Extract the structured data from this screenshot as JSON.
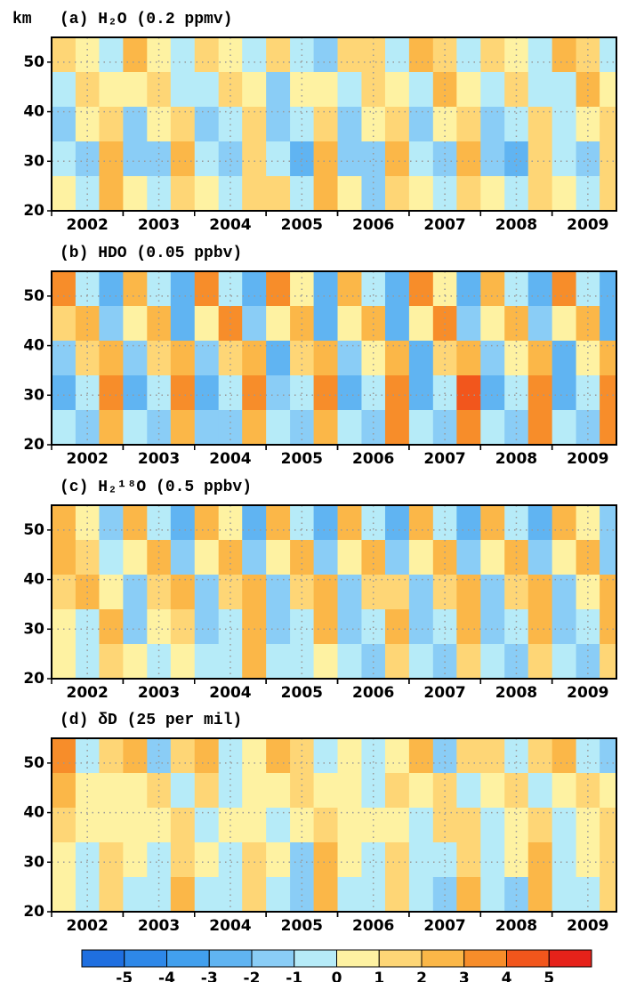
{
  "chart_data": [
    {
      "type": "heatmap",
      "title": "(a) H₂O (0.2 ppmv)",
      "y_label": "km",
      "x": [
        2001.67,
        2002.0,
        2002.33,
        2002.67,
        2003.0,
        2003.33,
        2003.67,
        2004.0,
        2004.33,
        2004.67,
        2005.0,
        2005.33,
        2005.67,
        2006.0,
        2006.33,
        2006.67,
        2007.0,
        2007.33,
        2007.67,
        2008.0,
        2008.33,
        2008.67,
        2009.0,
        2009.33
      ],
      "y": [
        51.5,
        44.5,
        37.5,
        30.5,
        23.5
      ],
      "z": [
        [
          1,
          0,
          -1,
          2,
          0,
          -1,
          1,
          0,
          -1,
          1,
          -1,
          -2,
          1,
          1,
          -1,
          2,
          1,
          -1,
          1,
          0,
          -1,
          2,
          1,
          -1
        ],
        [
          -1,
          1,
          0,
          0,
          1,
          -1,
          -1,
          1,
          0,
          -2,
          0,
          0,
          -1,
          1,
          0,
          -1,
          2,
          0,
          -1,
          1,
          -1,
          -1,
          2,
          0
        ],
        [
          -2,
          0,
          1,
          -2,
          0,
          1,
          -2,
          -1,
          1,
          -2,
          -1,
          1,
          -2,
          0,
          1,
          -2,
          0,
          1,
          -2,
          -1,
          1,
          -1,
          0,
          1
        ],
        [
          -1,
          -2,
          2,
          -2,
          -2,
          2,
          -1,
          -2,
          1,
          -1,
          -3,
          2,
          -2,
          -2,
          2,
          -1,
          -2,
          2,
          -2,
          -3,
          1,
          -1,
          -2,
          1
        ],
        [
          0,
          -1,
          2,
          0,
          -1,
          1,
          0,
          -1,
          1,
          1,
          -1,
          2,
          0,
          -2,
          1,
          0,
          -1,
          1,
          0,
          -1,
          1,
          0,
          -1,
          1
        ]
      ],
      "xlim": [
        2001.5,
        2009.4
      ],
      "ylim": [
        20,
        55
      ],
      "xticks": [
        2002,
        2003,
        2004,
        2005,
        2006,
        2007,
        2008,
        2009
      ],
      "yticks": [
        20,
        30,
        40,
        50
      ],
      "grid": true
    },
    {
      "type": "heatmap",
      "title": "(b) HDO (0.05 ppbv)",
      "x": [
        2001.67,
        2002.0,
        2002.33,
        2002.67,
        2003.0,
        2003.33,
        2003.67,
        2004.0,
        2004.33,
        2004.67,
        2005.0,
        2005.33,
        2005.67,
        2006.0,
        2006.33,
        2006.67,
        2007.0,
        2007.33,
        2007.67,
        2008.0,
        2008.33,
        2008.67,
        2009.0,
        2009.33
      ],
      "y": [
        51.5,
        44.5,
        37.5,
        30.5,
        23.5
      ],
      "z": [
        [
          3,
          -1,
          -3,
          2,
          -1,
          -3,
          3,
          -1,
          -3,
          3,
          0,
          -3,
          2,
          -1,
          -3,
          3,
          0,
          -3,
          2,
          -1,
          -3,
          3,
          -1,
          -3
        ],
        [
          1,
          2,
          -2,
          0,
          2,
          -3,
          0,
          3,
          -2,
          0,
          2,
          -3,
          0,
          2,
          -3,
          0,
          3,
          -2,
          0,
          2,
          -2,
          0,
          2,
          -3
        ],
        [
          -2,
          1,
          2,
          -2,
          1,
          2,
          -2,
          1,
          2,
          -3,
          1,
          2,
          -2,
          0,
          2,
          -3,
          1,
          2,
          -2,
          0,
          2,
          -3,
          0,
          2
        ],
        [
          -3,
          -1,
          3,
          -3,
          -1,
          3,
          -3,
          -1,
          3,
          -2,
          -1,
          3,
          -3,
          -1,
          3,
          -3,
          -1,
          4,
          -3,
          -1,
          3,
          -3,
          -1,
          3
        ],
        [
          -1,
          -2,
          2,
          -1,
          -2,
          2,
          -2,
          -2,
          2,
          -1,
          -2,
          2,
          -1,
          -2,
          3,
          -1,
          -2,
          3,
          -1,
          -2,
          3,
          -1,
          -2,
          3
        ]
      ],
      "xlim": [
        2001.5,
        2009.4
      ],
      "ylim": [
        20,
        55
      ],
      "xticks": [
        2002,
        2003,
        2004,
        2005,
        2006,
        2007,
        2008,
        2009
      ],
      "yticks": [
        20,
        30,
        40,
        50
      ],
      "grid": true
    },
    {
      "type": "heatmap",
      "title": "(c) H₂¹⁸O (0.5 ppbv)",
      "x": [
        2001.67,
        2002.0,
        2002.33,
        2002.67,
        2003.0,
        2003.33,
        2003.67,
        2004.0,
        2004.33,
        2004.67,
        2005.0,
        2005.33,
        2005.67,
        2006.0,
        2006.33,
        2006.67,
        2007.0,
        2007.33,
        2007.67,
        2008.0,
        2008.33,
        2008.67,
        2009.0,
        2009.33
      ],
      "y": [
        51.5,
        44.5,
        37.5,
        30.5,
        23.5
      ],
      "z": [
        [
          2,
          0,
          -2,
          2,
          -1,
          -3,
          2,
          0,
          -3,
          2,
          -1,
          -3,
          2,
          -1,
          -3,
          2,
          -1,
          -3,
          2,
          -1,
          -3,
          2,
          0,
          -2
        ],
        [
          2,
          1,
          -1,
          0,
          2,
          -2,
          0,
          2,
          -2,
          0,
          2,
          -2,
          0,
          2,
          -2,
          0,
          2,
          -2,
          0,
          2,
          -2,
          0,
          2,
          -2
        ],
        [
          1,
          2,
          0,
          -2,
          1,
          2,
          -2,
          1,
          2,
          -2,
          1,
          2,
          -2,
          1,
          1,
          -2,
          1,
          2,
          -2,
          1,
          2,
          -2,
          0,
          2
        ],
        [
          0,
          -1,
          2,
          -2,
          0,
          1,
          -2,
          -1,
          2,
          -2,
          -1,
          2,
          -2,
          -1,
          2,
          -2,
          -1,
          2,
          -2,
          -1,
          2,
          -2,
          -1,
          2
        ],
        [
          0,
          -1,
          1,
          0,
          -1,
          0,
          -1,
          -1,
          2,
          -1,
          -1,
          0,
          -1,
          -2,
          1,
          -1,
          -2,
          1,
          -1,
          -2,
          1,
          -1,
          -2,
          1
        ]
      ],
      "xlim": [
        2001.5,
        2009.4
      ],
      "ylim": [
        20,
        55
      ],
      "xticks": [
        2002,
        2003,
        2004,
        2005,
        2006,
        2007,
        2008,
        2009
      ],
      "yticks": [
        20,
        30,
        40,
        50
      ],
      "grid": true
    },
    {
      "type": "heatmap",
      "title": "(d) δD (25 per mil)",
      "x": [
        2001.67,
        2002.0,
        2002.33,
        2002.67,
        2003.0,
        2003.33,
        2003.67,
        2004.0,
        2004.33,
        2004.67,
        2005.0,
        2005.33,
        2005.67,
        2006.0,
        2006.33,
        2006.67,
        2007.0,
        2007.33,
        2007.67,
        2008.0,
        2008.33,
        2008.67,
        2009.0,
        2009.33
      ],
      "y": [
        51.5,
        44.5,
        37.5,
        30.5,
        23.5
      ],
      "z": [
        [
          3,
          -1,
          1,
          2,
          -2,
          1,
          2,
          -1,
          0,
          2,
          1,
          -1,
          0,
          -1,
          0,
          2,
          -2,
          1,
          1,
          -1,
          1,
          2,
          -1,
          -2
        ],
        [
          2,
          0,
          0,
          0,
          1,
          -1,
          1,
          -1,
          0,
          0,
          1,
          0,
          0,
          -1,
          1,
          0,
          1,
          -1,
          0,
          1,
          -1,
          0,
          1,
          0
        ],
        [
          1,
          0,
          0,
          0,
          0,
          1,
          -1,
          0,
          0,
          -1,
          0,
          1,
          0,
          0,
          0,
          -1,
          1,
          1,
          -1,
          0,
          1,
          -1,
          0,
          1
        ],
        [
          0,
          -1,
          1,
          0,
          -1,
          1,
          0,
          -1,
          1,
          0,
          -2,
          2,
          0,
          -1,
          1,
          -1,
          -1,
          1,
          -1,
          0,
          2,
          -1,
          0,
          1
        ],
        [
          0,
          -1,
          1,
          -1,
          -1,
          2,
          -1,
          -1,
          1,
          -1,
          -2,
          2,
          -1,
          -1,
          1,
          -1,
          -2,
          2,
          -1,
          -2,
          2,
          -1,
          -1,
          1
        ]
      ],
      "xlim": [
        2001.5,
        2009.4
      ],
      "ylim": [
        20,
        55
      ],
      "xticks": [
        2002,
        2003,
        2004,
        2005,
        2006,
        2007,
        2008,
        2009
      ],
      "yticks": [
        20,
        30,
        40,
        50
      ],
      "grid": true
    }
  ],
  "colorbar": {
    "levels": [
      -5,
      -4,
      -3,
      -2,
      -1,
      0,
      1,
      2,
      3,
      4,
      5
    ],
    "colors": [
      "#1f6fe0",
      "#2e88e8",
      "#42a0ee",
      "#60b4f2",
      "#8acdf6",
      "#b6ebf8",
      "#fef2a2",
      "#fed676",
      "#fbb748",
      "#f78d2a",
      "#f2561c",
      "#e6221a"
    ]
  }
}
